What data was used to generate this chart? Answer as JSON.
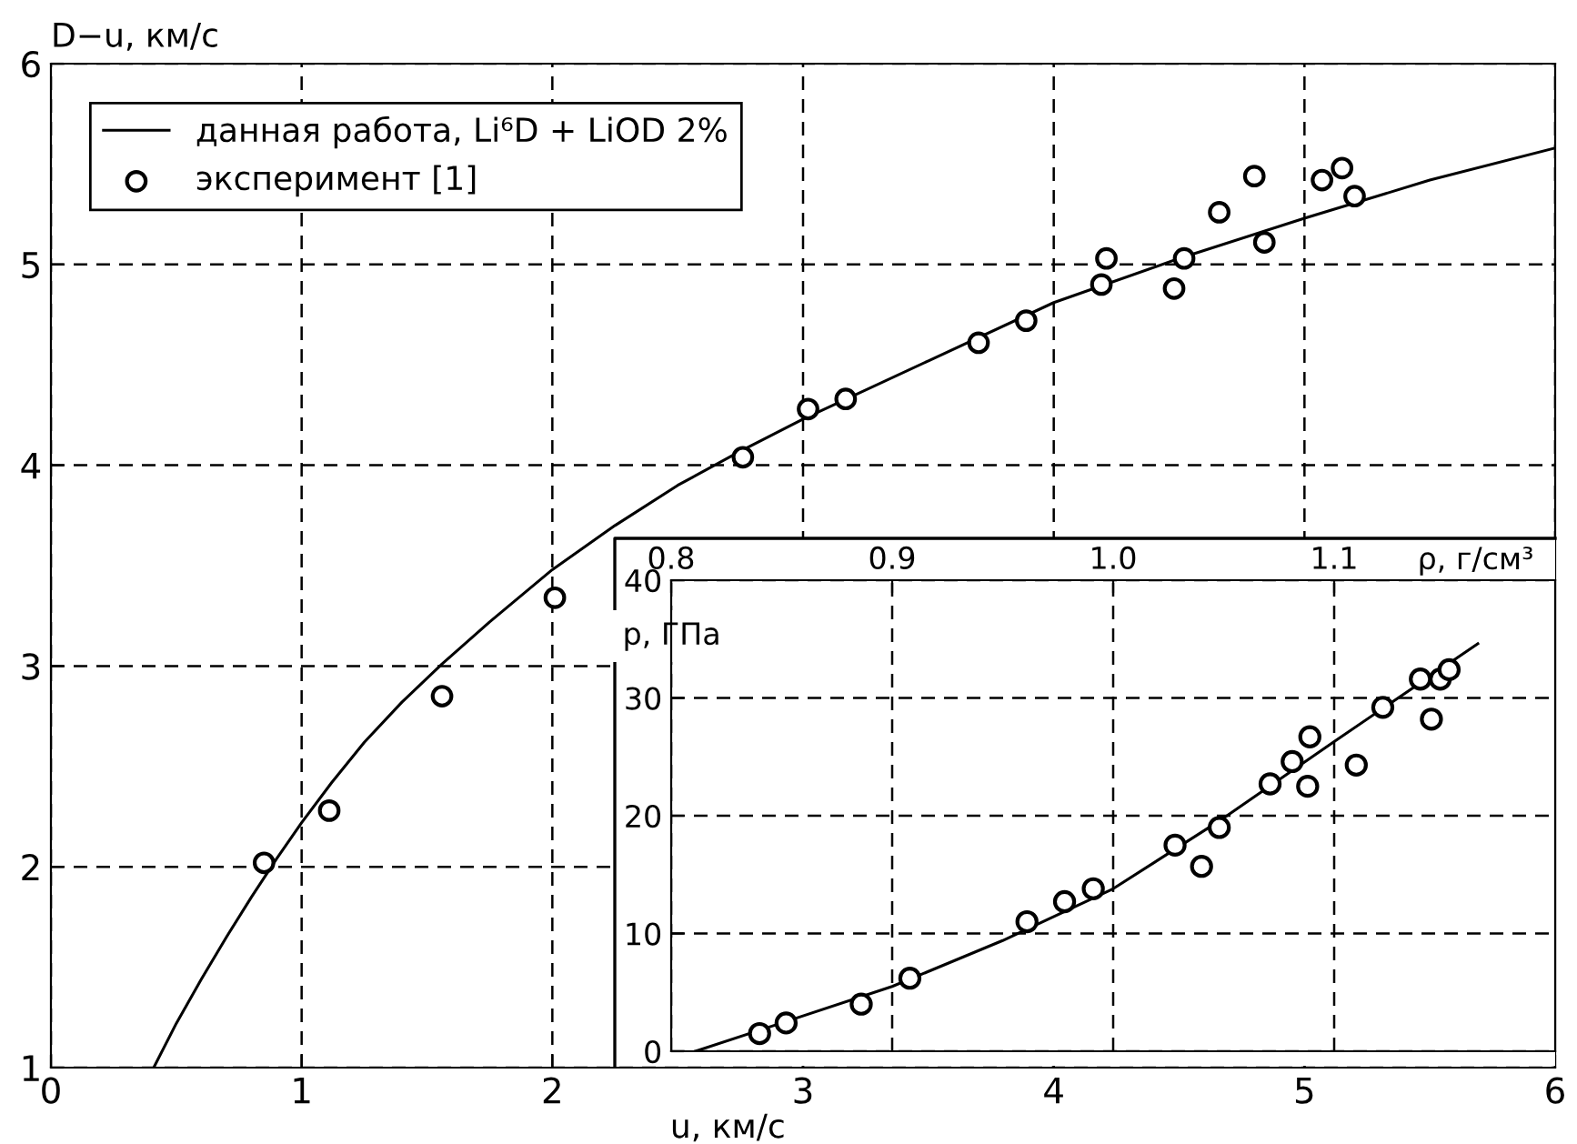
{
  "chart_data": [
    {
      "type": "scatter",
      "xlabel": "u, км/с",
      "ylabel": "D−u, км/с",
      "xlim": [
        0,
        6
      ],
      "ylim": [
        1,
        6
      ],
      "xticks": [
        0,
        1,
        2,
        3,
        4,
        5,
        6
      ],
      "yticks": [
        1,
        2,
        3,
        4,
        5,
        6
      ],
      "grid": true,
      "legend": "top left",
      "series": [
        {
          "type": "line",
          "name": "данная работа, Li⁶D + LiOD 2%",
          "color": "#000000",
          "line_style": "solid",
          "marker": "none",
          "x": [
            0.41,
            0.5,
            0.6,
            0.7,
            0.8,
            0.9,
            1.0,
            1.12,
            1.25,
            1.4,
            1.56,
            1.75,
            2.0,
            2.25,
            2.5,
            2.75,
            3.0,
            3.5,
            4.0,
            4.5,
            5.0,
            5.5,
            6.0
          ],
          "values": [
            1.0,
            1.22,
            1.44,
            1.65,
            1.85,
            2.04,
            2.22,
            2.42,
            2.62,
            2.82,
            3.01,
            3.22,
            3.48,
            3.7,
            3.9,
            4.07,
            4.23,
            4.52,
            4.81,
            5.03,
            5.23,
            5.42,
            5.58
          ]
        },
        {
          "name": "эксперимент [1]",
          "color": "#000000",
          "marker": "circle",
          "x": [
            0.85,
            1.11,
            1.56,
            2.01,
            2.76,
            3.02,
            3.17,
            3.7,
            3.89,
            4.19,
            4.21,
            4.48,
            4.52,
            4.66,
            4.8,
            4.84,
            5.07,
            5.15,
            5.2
          ],
          "values": [
            2.02,
            2.28,
            2.85,
            3.34,
            4.04,
            4.28,
            4.33,
            4.61,
            4.72,
            4.9,
            5.03,
            4.88,
            5.03,
            5.26,
            5.44,
            5.11,
            5.42,
            5.48,
            5.34
          ]
        }
      ]
    },
    {
      "type": "scatter",
      "xlabel": "ρ, г/см³",
      "ylabel": "p, ГПа",
      "xlim": [
        0.8,
        1.2
      ],
      "ylim": [
        0,
        40
      ],
      "xticks": [
        0.8,
        0.9,
        {
          "value": 1.0,
          "label": "1.0"
        },
        1.1
      ],
      "yticks": [
        0,
        10,
        20,
        30,
        40
      ],
      "grid": true,
      "series": [
        {
          "type": "line",
          "color": "#000000",
          "line_style": "solid",
          "marker": "none",
          "x": [
            0.811,
            0.85,
            0.9,
            0.95,
            1.0,
            1.05,
            1.1,
            1.165
          ],
          "values": [
            0,
            2.4,
            5.5,
            9.4,
            13.8,
            19.8,
            26.3,
            34.6
          ]
        },
        {
          "color": "#000000",
          "marker": "circle",
          "x": [
            0.84,
            0.852,
            0.886,
            0.908,
            0.961,
            0.978,
            0.991,
            1.028,
            1.04,
            1.048,
            1.071,
            1.081,
            1.088,
            1.089,
            1.11,
            1.122,
            1.139,
            1.144,
            1.148,
            1.152
          ],
          "values": [
            1.5,
            2.4,
            4.0,
            6.2,
            11.0,
            12.7,
            13.8,
            17.5,
            15.7,
            19.0,
            22.7,
            24.6,
            22.5,
            26.7,
            24.3,
            29.2,
            31.6,
            28.2,
            31.6,
            32.4
          ]
        }
      ]
    }
  ]
}
